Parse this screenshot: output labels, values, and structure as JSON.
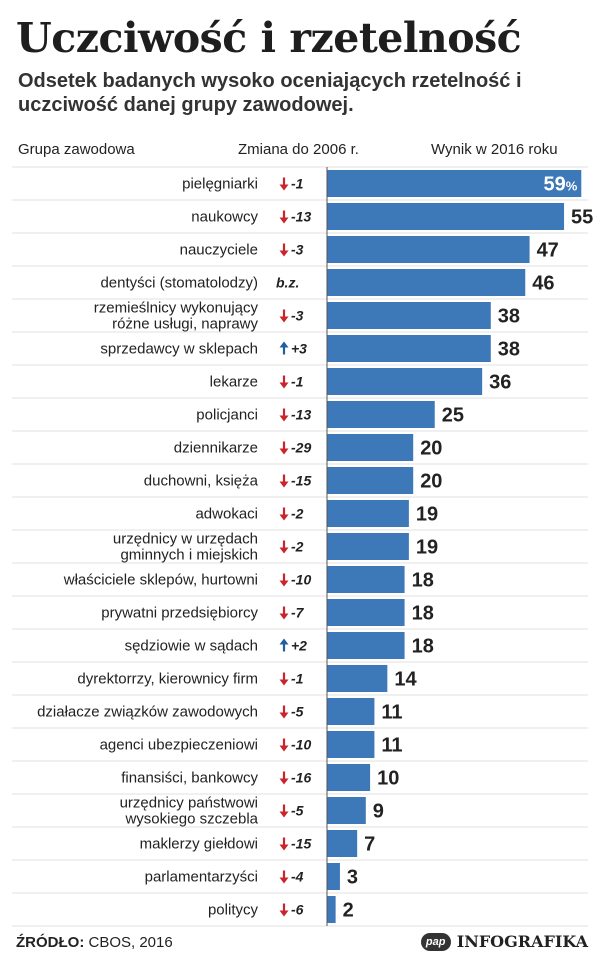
{
  "title": "Uczciwość i rzetelność",
  "subtitle": "Odsetek badanych wysoko oceniających rzetelność i uczciwość danej grupy zawodowej.",
  "columns": {
    "group": "Grupa zawodowa",
    "change": "Zmiana do 2006 r.",
    "result": "Wynik w 2016 roku"
  },
  "colors": {
    "bar": "#3d78b8",
    "down_arrow": "#c8262c",
    "up_arrow": "#1f5fa0",
    "row_line": "#e1e1e1",
    "axis_line": "#555555"
  },
  "chart_data": {
    "type": "bar",
    "orientation": "horizontal",
    "unit": "%",
    "categories": [
      "pielęgniarki",
      "naukowcy",
      "nauczyciele",
      "dentyści (stomatolodzy)",
      "rzemieślnicy wykonujący różne usługi, naprawy",
      "sprzedawcy w sklepach",
      "lekarze",
      "policjanci",
      "dziennikarze",
      "duchowni, księża",
      "adwokaci",
      "urzędnicy w urzędach gminnych i miejskich",
      "właściciele sklepów, hurtowni",
      "prywatni przedsiębiorcy",
      "sędziowie w sądach",
      "dyrektorrzy, kierownicy firm",
      "działacze związków zawodowych",
      "agenci ubezpieczeniowi",
      "finansiści, bankowcy",
      "urzędnicy państwowi wysokiego szczebla",
      "maklerzy giełdowi",
      "parlamentarzyści",
      "politycy"
    ],
    "category_lines": [
      [
        "pielęgniarki"
      ],
      [
        "naukowcy"
      ],
      [
        "nauczyciele"
      ],
      [
        "dentyści (stomatolodzy)"
      ],
      [
        "rzemieślnicy wykonujący",
        "różne usługi, naprawy"
      ],
      [
        "sprzedawcy w sklepach"
      ],
      [
        "lekarze"
      ],
      [
        "policjanci"
      ],
      [
        "dziennikarze"
      ],
      [
        "duchowni, księża"
      ],
      [
        "adwokaci"
      ],
      [
        "urzędnicy w urzędach",
        "gminnych i miejskich"
      ],
      [
        "właściciele sklepów, hurtowni"
      ],
      [
        "prywatni przedsiębiorcy"
      ],
      [
        "sędziowie w sądach"
      ],
      [
        "dyrektorrzy, kierownicy firm"
      ],
      [
        "działacze związków zawodowych"
      ],
      [
        "agenci ubezpieczeniowi"
      ],
      [
        "finansiści, bankowcy"
      ],
      [
        "urzędnicy państwowi",
        "wysokiego szczebla"
      ],
      [
        "maklerzy giełdowi"
      ],
      [
        "parlamentarzyści"
      ],
      [
        "politycy"
      ]
    ],
    "values": [
      59,
      55,
      47,
      46,
      38,
      38,
      36,
      25,
      20,
      20,
      19,
      19,
      18,
      18,
      18,
      14,
      11,
      11,
      10,
      9,
      7,
      3,
      2
    ],
    "value_labels": [
      "59",
      "55",
      "47",
      "46",
      "38",
      "38",
      "36",
      "25",
      "20",
      "20",
      "19",
      "19",
      "18",
      "18",
      "18",
      "14",
      "11",
      "11",
      "10",
      "9",
      "7",
      "3",
      "2"
    ],
    "first_value_suffix": "%",
    "change_labels": [
      "-1",
      "-13",
      "-3",
      "b.z.",
      "-3",
      "+3",
      "-1",
      "-13",
      "-29",
      "-15",
      "-2",
      "-2",
      "-10",
      "-7",
      "+2",
      "-1",
      "-5",
      "-10",
      "-16",
      "-5",
      "-15",
      "-4",
      "-6"
    ],
    "change_direction": [
      "down",
      "down",
      "down",
      "none",
      "down",
      "up",
      "down",
      "down",
      "down",
      "down",
      "down",
      "down",
      "down",
      "down",
      "up",
      "down",
      "down",
      "down",
      "down",
      "down",
      "down",
      "down",
      "down"
    ],
    "xlim": [
      0,
      59
    ]
  },
  "footer": {
    "source_label": "ŹRÓDŁO:",
    "source_text": "CBOS, 2016",
    "logo_text": "pap",
    "brand": "INFOGRAFIKA"
  }
}
